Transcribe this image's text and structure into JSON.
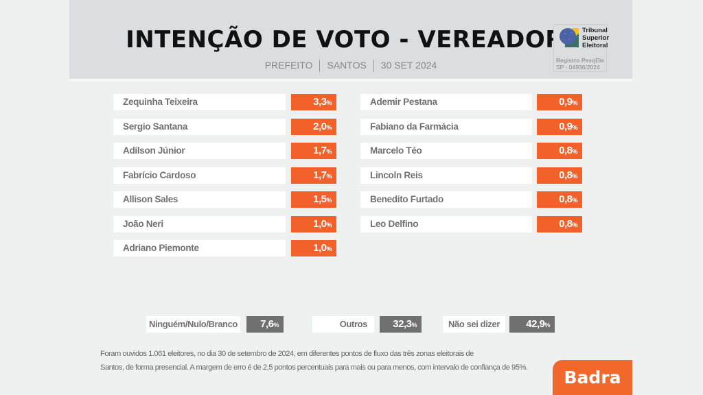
{
  "header": {
    "title": "INTENÇÃO DE VOTO - VEREADOR",
    "subtitle": [
      "PREFEITO",
      "SANTOS",
      "30 SET 2024"
    ]
  },
  "tse_badge": {
    "name_lines": [
      "Tribunal",
      "Superior",
      "Eleitoral"
    ],
    "registry_label": "Registro PesqEle",
    "registry_code": "SP - 04936/2024"
  },
  "colors": {
    "candidate_bar": "#f2612a",
    "other_bar": "#707070",
    "header_bg": "#dcdddf",
    "brand": "#f2672b"
  },
  "chart_data": {
    "type": "table",
    "title": "INTENÇÃO DE VOTO - VEREADOR",
    "subtitle": "PREFEITO | SANTOS | 30 SET 2024",
    "unit": "%",
    "candidates": [
      {
        "name": "Zequinha Teixeira",
        "value": 3.3,
        "label": "3,3"
      },
      {
        "name": "Sergio Santana",
        "value": 2.0,
        "label": "2,0"
      },
      {
        "name": "Adilson Júnior",
        "value": 1.7,
        "label": "1,7"
      },
      {
        "name": "Fabrício Cardoso",
        "value": 1.7,
        "label": "1,7"
      },
      {
        "name": "Allison Sales",
        "value": 1.5,
        "label": "1,5"
      },
      {
        "name": "João Neri",
        "value": 1.0,
        "label": "1,0"
      },
      {
        "name": "Adriano Piemonte",
        "value": 1.0,
        "label": "1,0"
      },
      {
        "name": "Ademir Pestana",
        "value": 0.9,
        "label": "0,9"
      },
      {
        "name": "Fabiano da Farmácia",
        "value": 0.9,
        "label": "0,9"
      },
      {
        "name": "Marcelo Téo",
        "value": 0.8,
        "label": "0,8"
      },
      {
        "name": "Lincoln Reis",
        "value": 0.8,
        "label": "0,8"
      },
      {
        "name": "Benedito Furtado",
        "value": 0.8,
        "label": "0,8"
      },
      {
        "name": "Leo Delfino",
        "value": 0.8,
        "label": "0,8"
      }
    ],
    "others": [
      {
        "name": "Ninguém/Nulo/Branco",
        "value": 7.6,
        "label": "7,6"
      },
      {
        "name": "Outros",
        "value": 32.3,
        "label": "32,3"
      },
      {
        "name": "Não sei dizer",
        "value": 42.9,
        "label": "42,9"
      }
    ]
  },
  "pct_symbol": "%",
  "footnote": {
    "line1": "Foram ouvidos 1.061 eleitores, no dia 30 de setembro de 2024, em diferentes pontos de fluxo das três zonas eleitorais de",
    "line2": "Santos, de forma presencial. A margem de erro é de 2,5 pontos percentuais para mais ou para menos, com intervalo de confiança de 95%."
  },
  "brand": {
    "name": "Badra"
  }
}
